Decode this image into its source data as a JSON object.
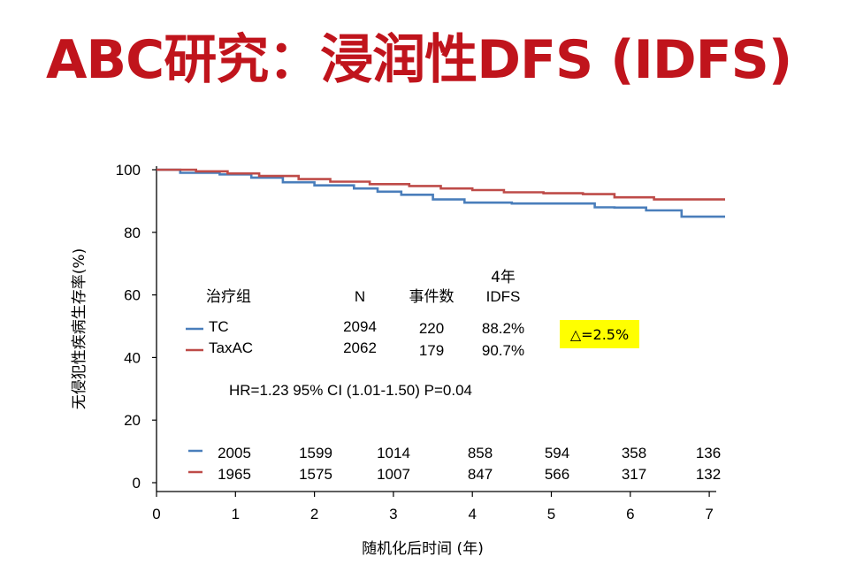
{
  "page": {
    "title": "ABC研究：浸润性DFS (IDFS)"
  },
  "colors": {
    "title": "#c0141c",
    "tc": "#4a7ebb",
    "taxac": "#be4b48",
    "highlight": "#ffff00"
  },
  "chart_data": {
    "type": "line",
    "xlabel": "随机化后时间 (年)",
    "ylabel": "无侵犯性疾病生存率(%)",
    "xlim": [
      0,
      7.2
    ],
    "ylim": [
      0,
      100
    ],
    "xticks": [
      "0",
      "1",
      "2",
      "3",
      "4",
      "5",
      "6",
      "7"
    ],
    "yticks": [
      "0",
      "20",
      "40",
      "60",
      "80",
      "100"
    ],
    "series": [
      {
        "name": "TC",
        "n": "2094",
        "events": "220",
        "idfs4": "88.2%",
        "x": [
          0,
          0.3,
          0.3,
          0.8,
          0.8,
          1.2,
          1.2,
          1.6,
          1.6,
          2.0,
          2.0,
          2.5,
          2.5,
          2.8,
          2.8,
          3.1,
          3.1,
          3.5,
          3.5,
          3.9,
          3.9,
          4.5,
          4.5,
          5.55,
          5.55,
          5.8,
          5.8,
          6.2,
          6.2,
          6.65,
          6.65,
          7.2
        ],
        "y": [
          100,
          100,
          99,
          99,
          98.5,
          98.5,
          97.5,
          97.5,
          96,
          96,
          95,
          95,
          94,
          94,
          93,
          93,
          92,
          92,
          90.5,
          90.5,
          89.5,
          89.5,
          89.2,
          89.2,
          88,
          88,
          87.9,
          87.9,
          87,
          87,
          85,
          85
        ]
      },
      {
        "name": "TaxAC",
        "n": "2062",
        "events": "179",
        "idfs4": "90.7%",
        "x": [
          0,
          0.5,
          0.5,
          0.9,
          0.9,
          1.3,
          1.3,
          1.8,
          1.8,
          2.2,
          2.2,
          2.7,
          2.7,
          3.2,
          3.2,
          3.6,
          3.6,
          4.0,
          4.0,
          4.4,
          4.4,
          4.9,
          4.9,
          5.4,
          5.4,
          5.8,
          5.8,
          6.3,
          6.3,
          7.2
        ],
        "y": [
          100,
          100,
          99.5,
          99.5,
          98.8,
          98.8,
          98,
          98,
          97,
          97,
          96.2,
          96.2,
          95.4,
          95.4,
          94.8,
          94.8,
          94,
          94,
          93.5,
          93.5,
          92.8,
          92.8,
          92.5,
          92.5,
          92.2,
          92.2,
          91.2,
          91.2,
          90.5,
          90.5
        ]
      }
    ],
    "legend": {
      "header_group": "治疗组",
      "header_n": "N",
      "header_events": "事件数",
      "header_idfs_line1": "4年",
      "header_idfs_line2": "IDFS"
    },
    "annotations": {
      "delta": "△=2.5%",
      "hr": "HR=1.23 95% CI (1.01-1.50) P=0.04"
    },
    "at_risk": {
      "times": [
        0,
        1,
        2,
        3,
        4,
        5,
        6,
        7
      ],
      "rows": [
        {
          "series": "TC",
          "values": [
            "2005",
            "1599",
            "1014",
            "858",
            "594",
            "358",
            "136"
          ]
        },
        {
          "series": "TaxAC",
          "values": [
            "1965",
            "1575",
            "1007",
            "847",
            "566",
            "317",
            "132"
          ]
        }
      ]
    }
  }
}
